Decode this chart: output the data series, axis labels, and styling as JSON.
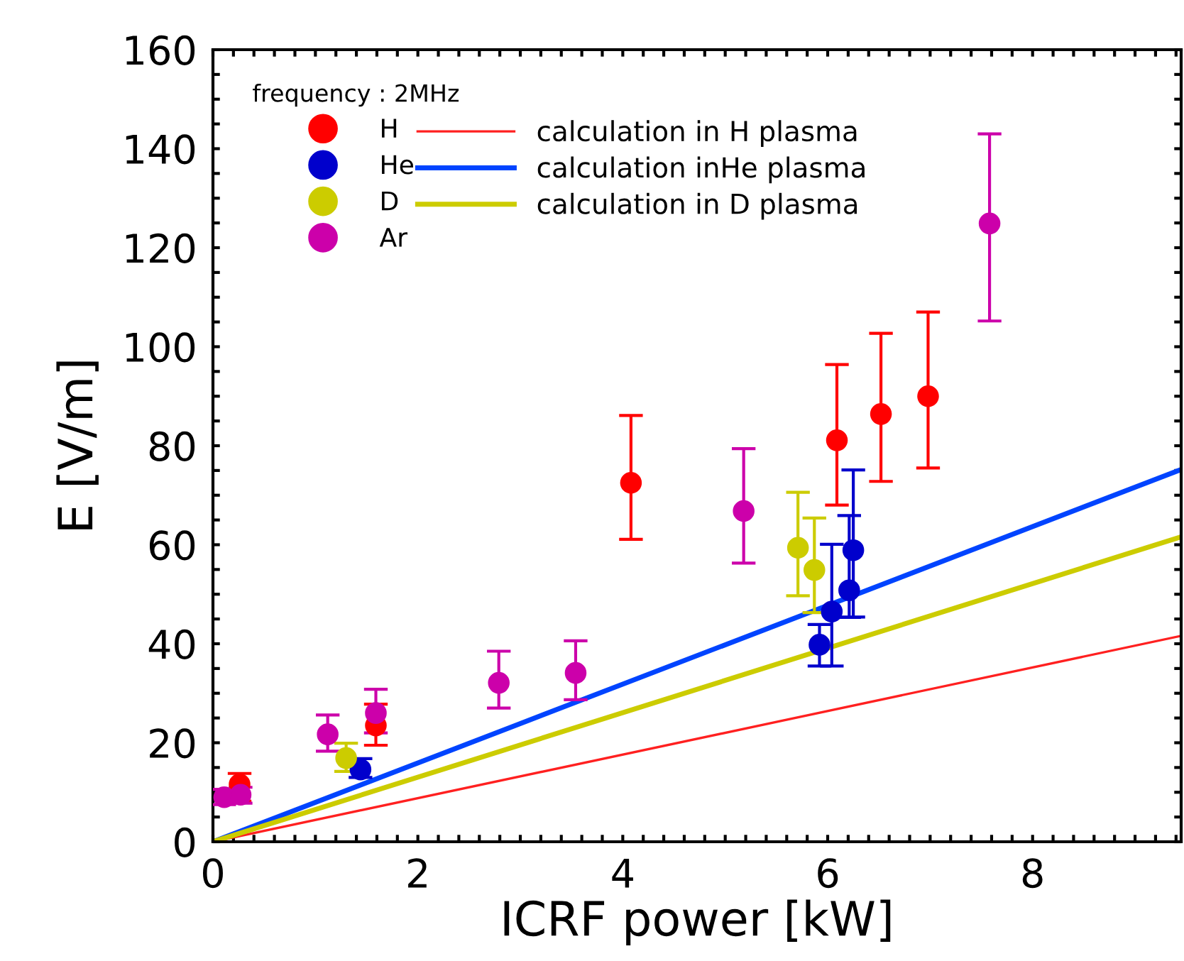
{
  "chart_data": {
    "type": "scatter",
    "xlabel": "ICRF power [kW]",
    "ylabel": "E [V/m]",
    "legend_title": "frequency : 2MHz",
    "legend": "top left",
    "marker": "circle",
    "xlim": [
      0,
      9.45
    ],
    "ylim": [
      0,
      160
    ],
    "xticks": [
      0,
      {
        "value": 0.2,
        "label": null
      },
      {
        "value": 0.4,
        "label": null
      },
      {
        "value": 0.6,
        "label": null
      },
      {
        "value": 0.8,
        "label": null
      },
      {
        "value": 1,
        "label": null
      },
      {
        "value": 1.2,
        "label": null
      },
      {
        "value": 1.4,
        "label": null
      },
      {
        "value": 1.6,
        "label": null
      },
      {
        "value": 1.8,
        "label": null
      },
      2,
      {
        "value": 2.2,
        "label": null
      },
      {
        "value": 2.4,
        "label": null
      },
      {
        "value": 2.6,
        "label": null
      },
      {
        "value": 2.8,
        "label": null
      },
      {
        "value": 3,
        "label": null
      },
      {
        "value": 3.2,
        "label": null
      },
      {
        "value": 3.4,
        "label": null
      },
      {
        "value": 3.6,
        "label": null
      },
      {
        "value": 3.8,
        "label": null
      },
      4,
      {
        "value": 4.2,
        "label": null
      },
      {
        "value": 4.4,
        "label": null
      },
      {
        "value": 4.6,
        "label": null
      },
      {
        "value": 4.8,
        "label": null
      },
      {
        "value": 5,
        "label": null
      },
      {
        "value": 5.2,
        "label": null
      },
      {
        "value": 5.4,
        "label": null
      },
      {
        "value": 5.6,
        "label": null
      },
      {
        "value": 5.8,
        "label": null
      },
      6,
      {
        "value": 6.2,
        "label": null
      },
      {
        "value": 6.4,
        "label": null
      },
      {
        "value": 6.6,
        "label": null
      },
      {
        "value": 6.8,
        "label": null
      },
      {
        "value": 7,
        "label": null
      },
      {
        "value": 7.2,
        "label": null
      },
      {
        "value": 7.4,
        "label": null
      },
      {
        "value": 7.6,
        "label": null
      },
      {
        "value": 7.8,
        "label": null
      },
      8,
      {
        "value": 8.2,
        "label": null
      },
      {
        "value": 8.4,
        "label": null
      },
      {
        "value": 8.6,
        "label": null
      },
      {
        "value": 8.8,
        "label": null
      },
      {
        "value": 9,
        "label": null
      },
      {
        "value": 9.2,
        "label": null
      },
      {
        "value": 9.4,
        "label": null
      }
    ],
    "yticks": [
      0,
      {
        "value": 5,
        "label": null
      },
      {
        "value": 10,
        "label": null
      },
      {
        "value": 15,
        "label": null
      },
      20,
      {
        "value": 25,
        "label": null
      },
      {
        "value": 30,
        "label": null
      },
      {
        "value": 35,
        "label": null
      },
      40,
      {
        "value": 45,
        "label": null
      },
      {
        "value": 50,
        "label": null
      },
      {
        "value": 55,
        "label": null
      },
      60,
      {
        "value": 65,
        "label": null
      },
      {
        "value": 70,
        "label": null
      },
      {
        "value": 75,
        "label": null
      },
      80,
      {
        "value": 85,
        "label": null
      },
      {
        "value": 90,
        "label": null
      },
      {
        "value": 95,
        "label": null
      },
      100,
      {
        "value": 105,
        "label": null
      },
      {
        "value": 110,
        "label": null
      },
      {
        "value": 115,
        "label": null
      },
      120,
      {
        "value": 125,
        "label": null
      },
      {
        "value": 130,
        "label": null
      },
      {
        "value": 135,
        "label": null
      },
      140,
      {
        "value": 145,
        "label": null
      },
      {
        "value": 150,
        "label": null
      },
      {
        "value": 155,
        "label": null
      },
      160
    ],
    "series": [
      {
        "name": "H",
        "color": "#ff0000",
        "x": [
          0.26,
          1.59,
          4.08,
          6.09,
          6.52,
          6.98
        ],
        "values": [
          11.6,
          23.5,
          72.5,
          81.1,
          86.4,
          90
        ],
        "errors": [
          [
            8.2,
            13.8
          ],
          [
            19.5,
            27.8
          ],
          [
            61.1,
            86.1
          ],
          [
            68,
            96.4
          ],
          [
            72.8,
            102.7
          ],
          [
            75.5,
            107
          ]
        ]
      },
      {
        "name": "He",
        "color": "#0000cc",
        "x": [
          1.44,
          5.92,
          6.04,
          6.21,
          6.25
        ],
        "values": [
          14.6,
          39.8,
          46.5,
          50.8,
          58.9
        ],
        "errors": [
          [
            13,
            16.8
          ],
          [
            35.5,
            43.9
          ],
          [
            35.5,
            60.1
          ],
          [
            45.3,
            65.9
          ],
          [
            45.4,
            75.1
          ]
        ]
      },
      {
        "name": "D",
        "color": "#cccc00",
        "x": [
          1.3,
          5.71,
          5.87
        ],
        "values": [
          16.9,
          59.4,
          54.9
        ],
        "errors": [
          [
            14.2,
            19.9
          ],
          [
            49.7,
            70.6
          ],
          [
            46.3,
            65.4
          ]
        ]
      },
      {
        "name": "Ar",
        "color": "#cc00aa",
        "x": [
          0.11,
          0.27,
          1.12,
          1.59,
          2.79,
          3.54,
          5.18,
          7.58
        ],
        "values": [
          9,
          9.5,
          21.7,
          26,
          32.1,
          34.1,
          66.8,
          124.9
        ],
        "errors": [
          [
            7.5,
            10.6
          ],
          [
            7.8,
            11
          ],
          [
            18.3,
            25.6
          ],
          [
            22,
            30.8
          ],
          [
            27,
            38.5
          ],
          [
            28.7,
            40.6
          ],
          [
            56.3,
            79.4
          ],
          [
            105.2,
            143
          ]
        ]
      },
      {
        "name": "calculation in H plasma",
        "type": "line",
        "marker": "none",
        "color": "#ff2020",
        "x": [
          0,
          9.45
        ],
        "values": [
          0,
          41.6
        ]
      },
      {
        "name": "calculation inHe plasma",
        "type": "line",
        "marker": "none",
        "color": "#0044ff",
        "x": [
          0,
          9.45
        ],
        "values": [
          0,
          75.2
        ]
      },
      {
        "name": "calculation in D plasma",
        "type": "line",
        "marker": "none",
        "color": "#cccc00",
        "x": [
          0,
          9.45
        ],
        "values": [
          0,
          61.6
        ]
      }
    ]
  }
}
